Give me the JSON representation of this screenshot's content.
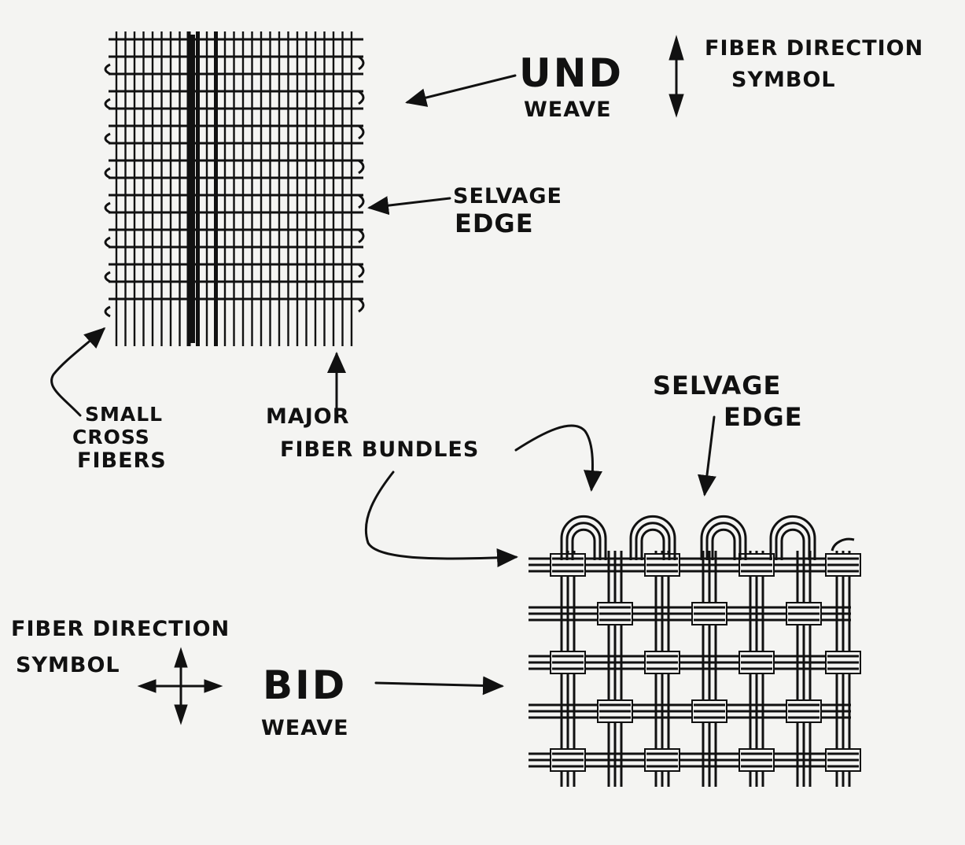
{
  "und": {
    "title": "UND",
    "subtitle": "WEAVE",
    "symbol_line1": "FIBER DIRECTION",
    "symbol_line2": "SYMBOL",
    "selvage_line1": "SELVAGE",
    "selvage_line2": "EDGE"
  },
  "callouts": {
    "cross_line1": "SMALL",
    "cross_line2": "CROSS",
    "cross_line3": "FIBERS",
    "major_line1": "MAJOR",
    "major_line2": "FIBER BUNDLES"
  },
  "bid": {
    "title": "BID",
    "subtitle": "WEAVE",
    "symbol_line1": "FIBER DIRECTION",
    "symbol_line2": "SYMBOL",
    "selvage_line1": "SELVAGE",
    "selvage_line2": "EDGE"
  },
  "colors": {
    "ink": "#111111",
    "paper": "#f4f4f2"
  }
}
